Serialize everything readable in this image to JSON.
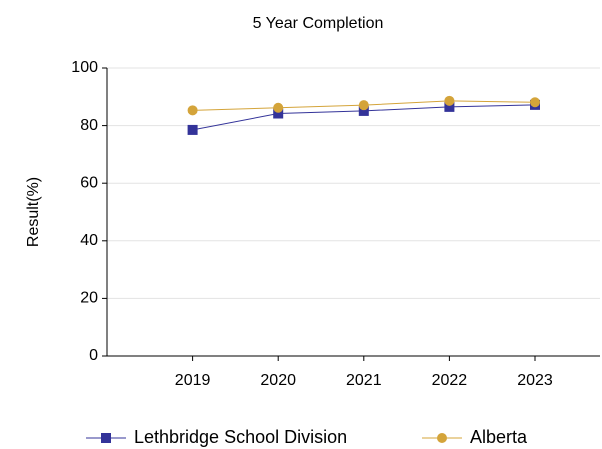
{
  "chart_data": {
    "type": "line",
    "title": "5 Year Completion",
    "y_label": "Result(%)",
    "categories": [
      "2019",
      "2020",
      "2021",
      "2022",
      "2023"
    ],
    "series": [
      {
        "name": "Lethbridge School Division",
        "color": "#333399",
        "marker": "square",
        "values": [
          78.5,
          84.2,
          85.1,
          86.5,
          87.2
        ]
      },
      {
        "name": "Alberta",
        "color": "#d4a43a",
        "marker": "circle",
        "values": [
          85.3,
          86.2,
          87.1,
          88.6,
          88.1
        ]
      }
    ],
    "ylim": [
      0,
      100
    ],
    "yticks": [
      0,
      20,
      40,
      60,
      80,
      100
    ],
    "grid": true,
    "legend": "bottom"
  }
}
